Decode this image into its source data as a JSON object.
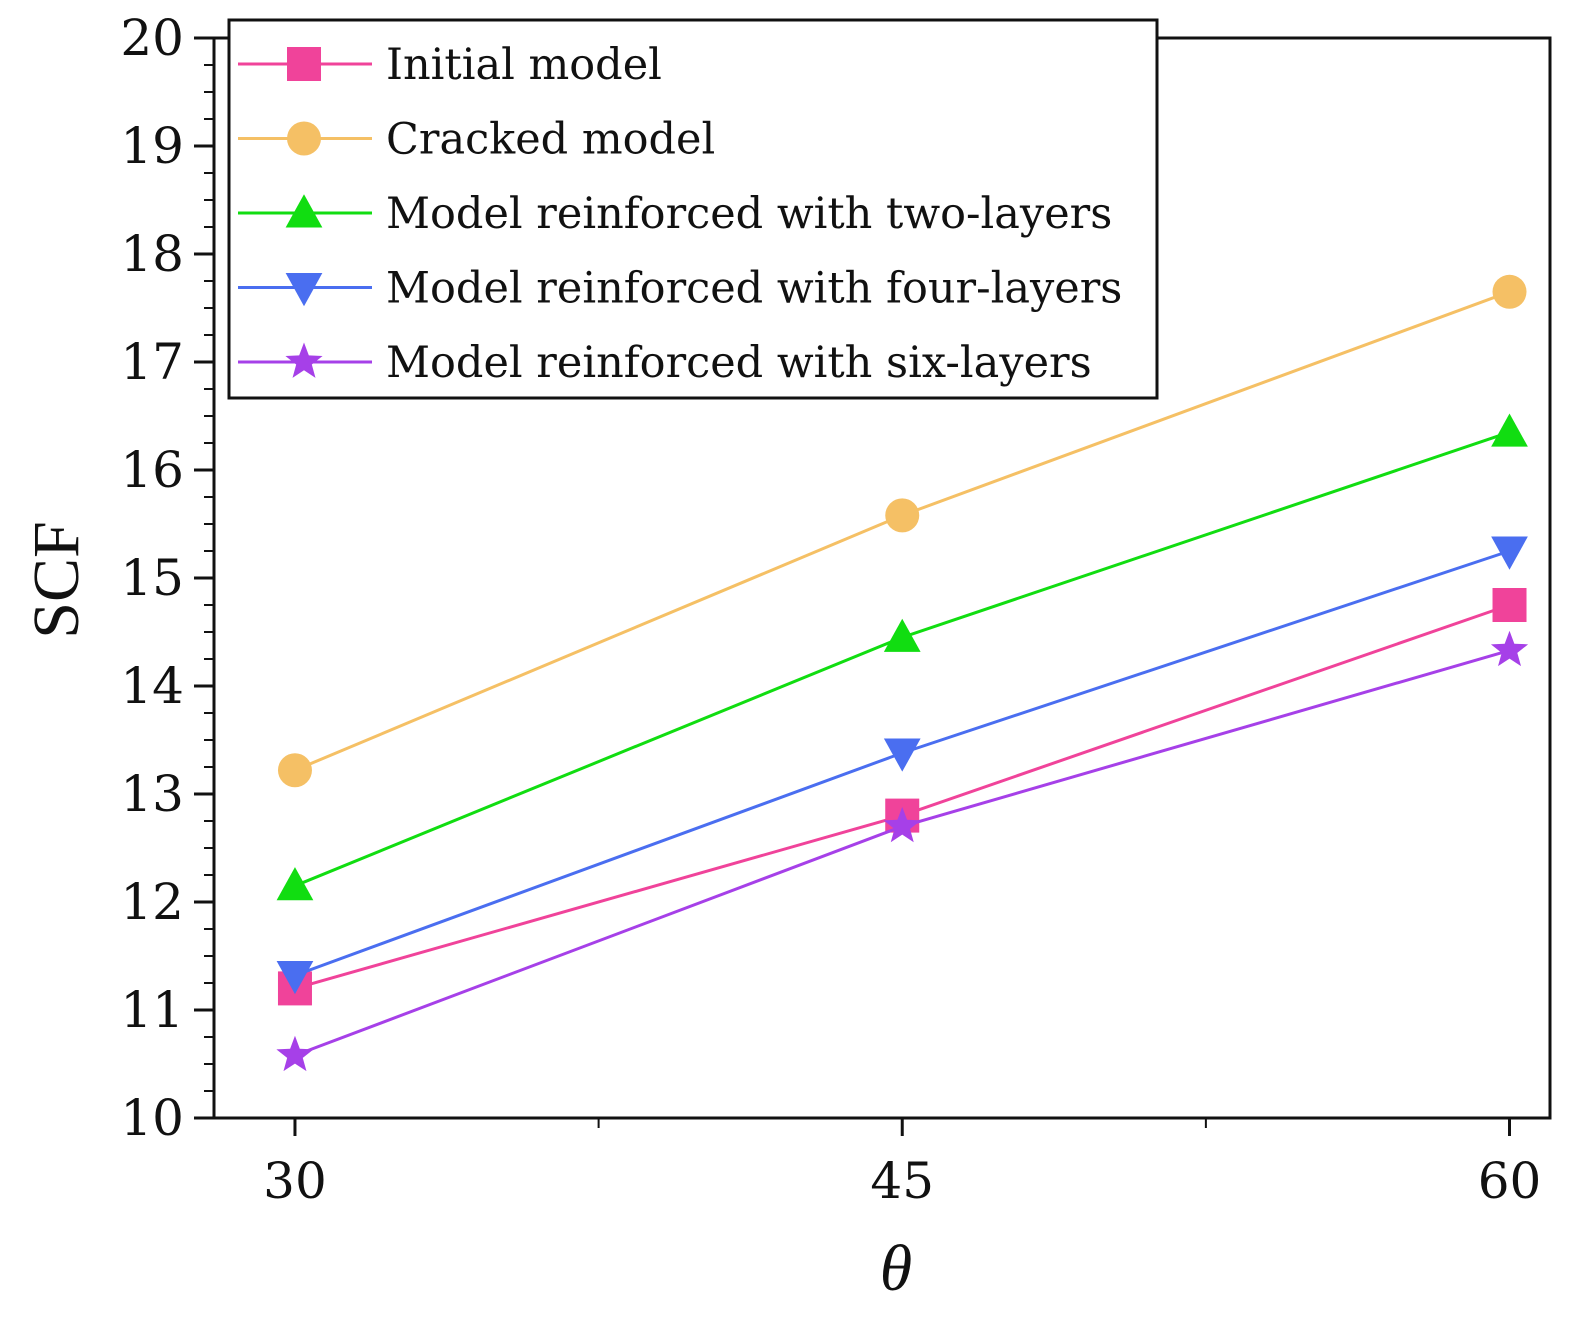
{
  "chart_data": {
    "type": "line",
    "title": "",
    "xlabel": "θ",
    "ylabel": "SCF",
    "x": [
      30,
      45,
      60
    ],
    "xlim": [
      28,
      61
    ],
    "ylim": [
      10,
      20
    ],
    "xticks": [
      30,
      45,
      60
    ],
    "yticks": [
      10,
      11,
      12,
      13,
      14,
      15,
      16,
      17,
      18,
      19,
      20
    ],
    "legend_position": "top-left",
    "grid": false,
    "series": [
      {
        "name": "Initial model",
        "values": [
          11.2,
          12.8,
          14.75
        ],
        "color": "#f0439a",
        "marker": "square"
      },
      {
        "name": "Cracked model",
        "values": [
          13.22,
          15.58,
          17.65
        ],
        "color": "#f5c065",
        "marker": "circle"
      },
      {
        "name": "Model reinforced with two-layers",
        "values": [
          12.15,
          14.45,
          16.35
        ],
        "color": "#11dd11",
        "marker": "triangle-up"
      },
      {
        "name": "Model reinforced with four-layers",
        "values": [
          11.32,
          13.38,
          15.25
        ],
        "color": "#4a6ef0",
        "marker": "triangle-down"
      },
      {
        "name": "Model reinforced with six-layers",
        "values": [
          10.58,
          12.7,
          14.33
        ],
        "color": "#a640e8",
        "marker": "star"
      }
    ]
  }
}
